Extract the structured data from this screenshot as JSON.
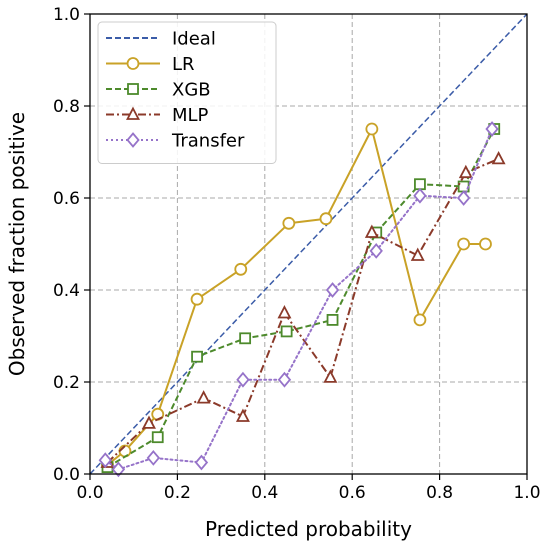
{
  "chart_data": {
    "type": "line",
    "xlabel": "Predicted probability",
    "ylabel": "Observed fraction positive",
    "xlim": [
      0,
      1
    ],
    "ylim": [
      0,
      1
    ],
    "xticks": [
      "0.0",
      "0.2",
      "0.4",
      "0.6",
      "0.8",
      "1.0"
    ],
    "yticks": [
      "0.0",
      "0.2",
      "0.4",
      "0.6",
      "0.8",
      "1.0"
    ],
    "grid": true,
    "legend_position": "top-left",
    "series": [
      {
        "name": "Ideal",
        "color": "#3b5ca8",
        "dash": "dashed",
        "marker": "none",
        "x": [
          0,
          1
        ],
        "y": [
          0,
          1
        ]
      },
      {
        "name": "LR",
        "color": "#c9a227",
        "dash": "solid",
        "marker": "circle",
        "x": [
          0.04,
          0.08,
          0.155,
          0.245,
          0.345,
          0.455,
          0.54,
          0.645,
          0.755,
          0.855,
          0.905
        ],
        "y": [
          0.02,
          0.05,
          0.13,
          0.38,
          0.445,
          0.545,
          0.555,
          0.75,
          0.335,
          0.5,
          0.5
        ]
      },
      {
        "name": "XGB",
        "color": "#4d8a2c",
        "dash": "dashed",
        "marker": "square",
        "x": [
          0.04,
          0.155,
          0.245,
          0.355,
          0.45,
          0.555,
          0.655,
          0.755,
          0.855,
          0.925
        ],
        "y": [
          0.015,
          0.08,
          0.255,
          0.295,
          0.31,
          0.335,
          0.525,
          0.63,
          0.625,
          0.75
        ]
      },
      {
        "name": "MLP",
        "color": "#8b3a2a",
        "dash": "dashdot",
        "marker": "triangle",
        "x": [
          0.04,
          0.135,
          0.26,
          0.35,
          0.445,
          0.55,
          0.645,
          0.75,
          0.86,
          0.935
        ],
        "y": [
          0.025,
          0.11,
          0.165,
          0.125,
          0.35,
          0.21,
          0.525,
          0.475,
          0.655,
          0.685
        ]
      },
      {
        "name": "Transfer",
        "color": "#9673c9",
        "dash": "dotted",
        "marker": "diamond",
        "x": [
          0.035,
          0.065,
          0.145,
          0.255,
          0.35,
          0.445,
          0.555,
          0.655,
          0.755,
          0.855,
          0.92
        ],
        "y": [
          0.03,
          0.01,
          0.035,
          0.025,
          0.205,
          0.205,
          0.4,
          0.485,
          0.605,
          0.6,
          0.75
        ]
      }
    ]
  }
}
